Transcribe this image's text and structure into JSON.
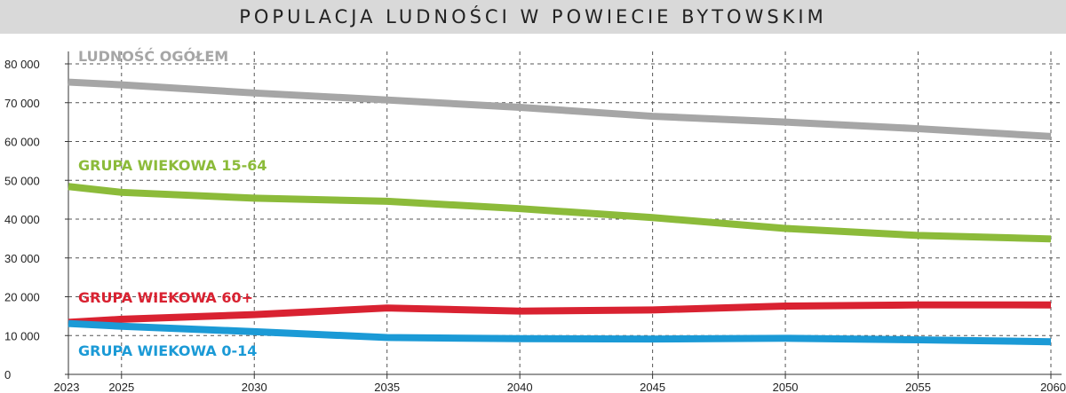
{
  "chart_data": {
    "type": "line",
    "title": "POPULACJA LUDNOŚCI W POWIECIE BYTOWSKIM",
    "x": [
      2023,
      2025,
      2030,
      2035,
      2040,
      2045,
      2050,
      2055,
      2060
    ],
    "x_tick_labels": [
      "2023",
      "2025",
      "2030",
      "2035",
      "2040",
      "2045",
      "2050",
      "2055",
      "2060"
    ],
    "y_ticks": [
      0,
      10000,
      20000,
      30000,
      40000,
      50000,
      60000,
      70000,
      80000
    ],
    "y_tick_labels": [
      "0",
      "10 000",
      "20 000",
      "30 000",
      "40 000",
      "50 000",
      "60 000",
      "70 000",
      "80 000"
    ],
    "ylim": [
      0,
      80000
    ],
    "xlim": [
      2023,
      2060
    ],
    "grid": true,
    "series": [
      {
        "name": "LUDNOŚĆ OGÓŁEM",
        "color": "#a6a6a6",
        "values": [
          75300,
          74600,
          72500,
          70700,
          68800,
          66500,
          65000,
          63300,
          61300
        ]
      },
      {
        "name": "GRUPA WIEKOWA 15-64",
        "color": "#8cbb3a",
        "values": [
          48400,
          46900,
          45400,
          44600,
          42700,
          40400,
          37600,
          35800,
          34900
        ]
      },
      {
        "name": "GRUPA WIEKOWA 60+",
        "color": "#d92231",
        "values": [
          13400,
          14200,
          15400,
          17100,
          16300,
          16600,
          17600,
          17900,
          17900
        ]
      },
      {
        "name": "GRUPA WIEKOWA 0-14",
        "color": "#1b9ad6",
        "values": [
          13100,
          12400,
          11000,
          9500,
          9200,
          9100,
          9300,
          8900,
          8400
        ]
      }
    ]
  }
}
